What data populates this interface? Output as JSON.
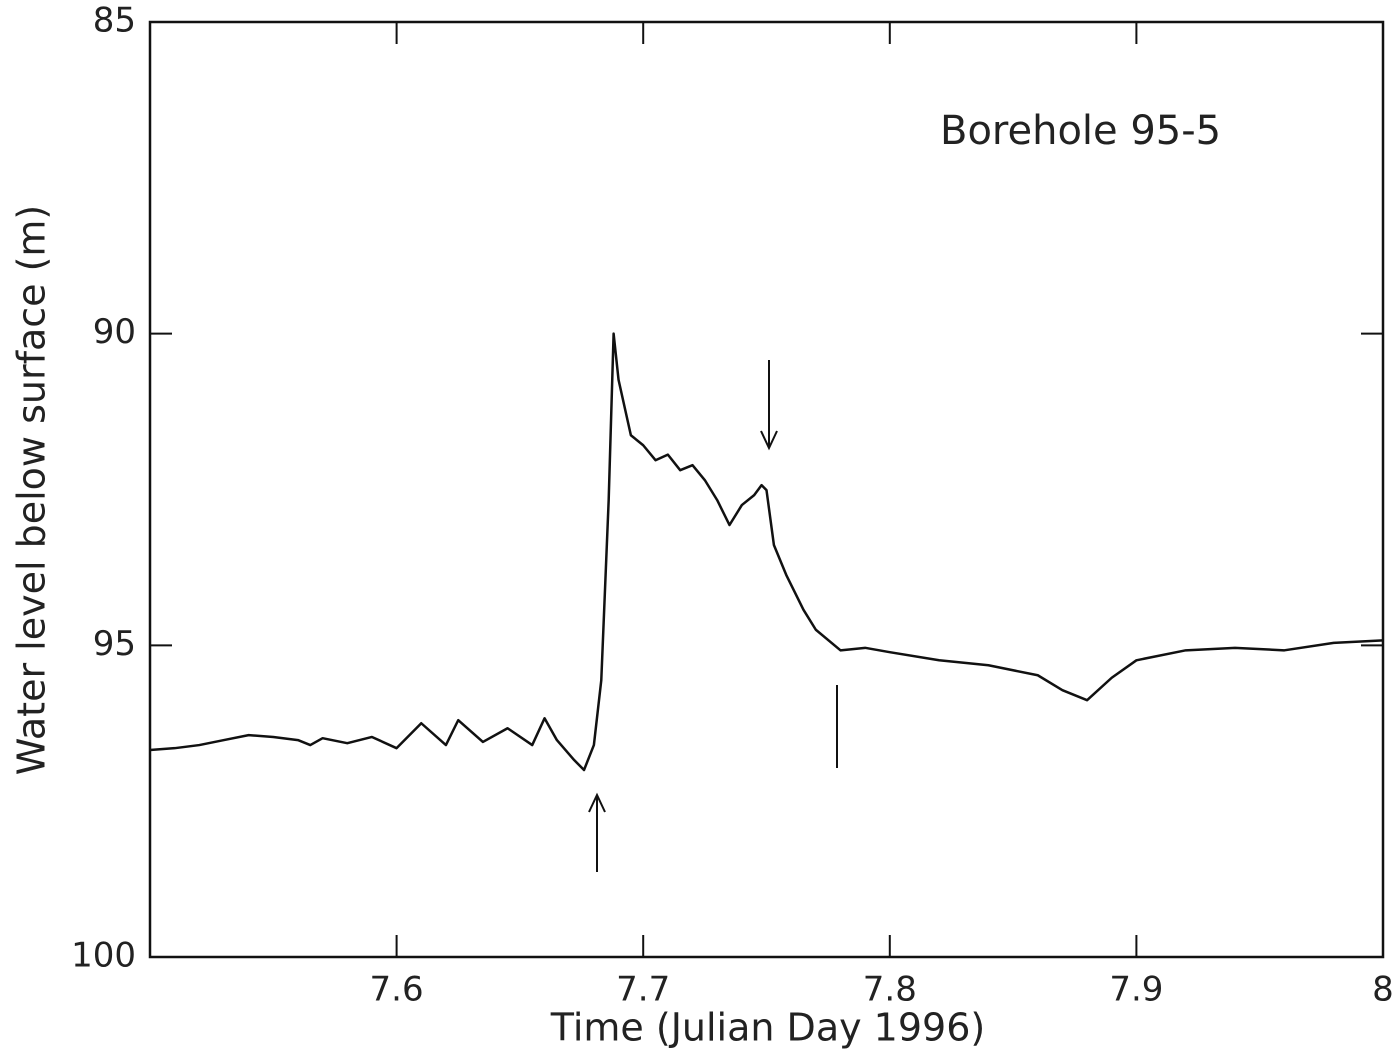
{
  "chart_data": {
    "type": "line",
    "annotation": "Borehole 95-5",
    "x_label": "Time (Julian Day 1996)",
    "y_label": "Water level below surface (m)",
    "x": [
      7.5,
      7.51,
      7.52,
      7.53,
      7.54,
      7.55,
      7.56,
      7.565,
      7.57,
      7.58,
      7.59,
      7.6,
      7.61,
      7.62,
      7.625,
      7.635,
      7.645,
      7.655,
      7.66,
      7.665,
      7.672,
      7.676,
      7.68,
      7.683,
      7.686,
      7.688,
      7.69,
      7.695,
      7.7,
      7.705,
      7.71,
      7.715,
      7.72,
      7.725,
      7.73,
      7.735,
      7.74,
      7.745,
      7.748,
      7.75,
      7.753,
      7.758,
      7.765,
      7.77,
      7.78,
      7.79,
      7.8,
      7.82,
      7.84,
      7.86,
      7.87,
      7.88,
      7.89,
      7.9,
      7.92,
      7.94,
      7.96,
      7.98,
      8.0
    ],
    "series": [
      {
        "color": "#111111",
        "values": [
          96.68,
          96.65,
          96.6,
          96.52,
          96.44,
          96.47,
          96.52,
          96.6,
          96.49,
          96.57,
          96.47,
          96.65,
          96.25,
          96.6,
          96.2,
          96.55,
          96.33,
          96.6,
          96.17,
          96.52,
          96.84,
          97.0,
          96.6,
          95.56,
          92.67,
          90.0,
          90.74,
          91.63,
          91.79,
          92.03,
          91.94,
          92.19,
          92.11,
          92.35,
          92.67,
          93.07,
          92.75,
          92.59,
          92.43,
          92.51,
          93.39,
          93.87,
          94.43,
          94.75,
          95.08,
          95.04,
          95.11,
          95.24,
          95.32,
          95.48,
          95.72,
          95.88,
          95.52,
          95.24,
          95.08,
          95.04,
          95.08,
          94.96,
          94.92
        ]
      }
    ],
    "xlim": [
      7.5,
      8.0
    ],
    "xticks": [
      7.6,
      7.7,
      7.8,
      7.9,
      8
    ],
    "ylim": [
      85,
      100
    ],
    "yticks": [
      85,
      90,
      95,
      100
    ],
    "y_inverted": true
  }
}
